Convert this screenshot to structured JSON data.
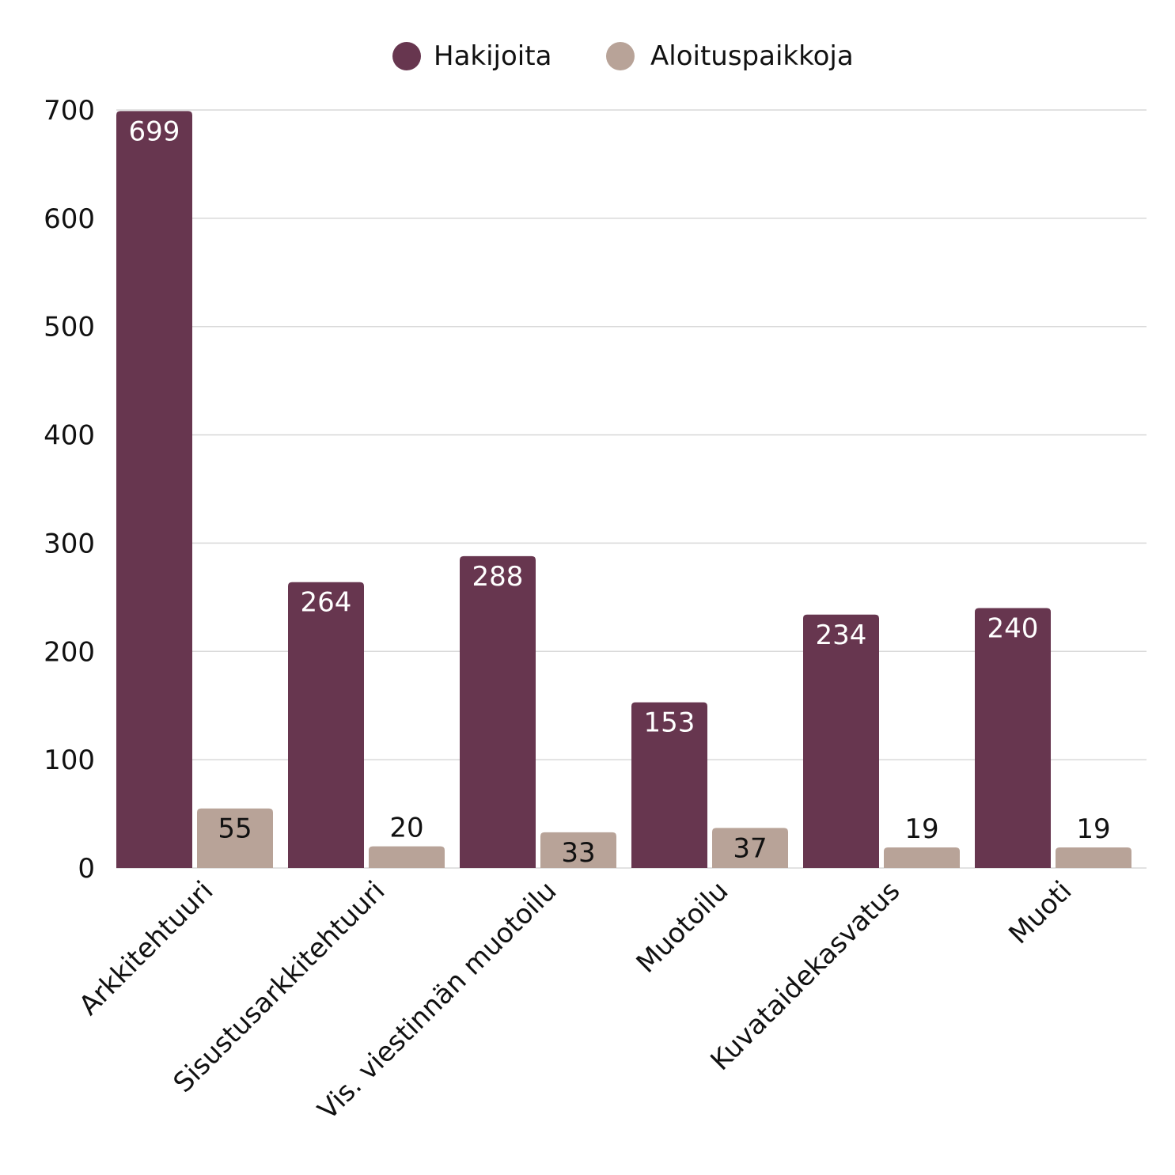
{
  "chart_data": {
    "type": "bar",
    "categories": [
      "Arkkitehtuuri",
      "Sisustusarkkitehtuuri",
      "Vis. viestinnän muotoilu",
      "Muotoilu",
      "Kuvataidekasvatus",
      "Muoti"
    ],
    "series": [
      {
        "name": "Hakijoita",
        "color": "#67364f",
        "label_color": "#ffffff",
        "values": [
          699,
          264,
          288,
          153,
          234,
          240
        ]
      },
      {
        "name": "Aloituspaikkoja",
        "color": "#b8a398",
        "label_color": "#111111",
        "values": [
          55,
          20,
          33,
          37,
          19,
          19
        ]
      }
    ],
    "title": "",
    "xlabel": "",
    "ylabel": "",
    "ylim": [
      0,
      700
    ],
    "yticks": [
      0,
      100,
      200,
      300,
      400,
      500,
      600,
      700
    ],
    "grid": true,
    "legend": "top-center"
  }
}
